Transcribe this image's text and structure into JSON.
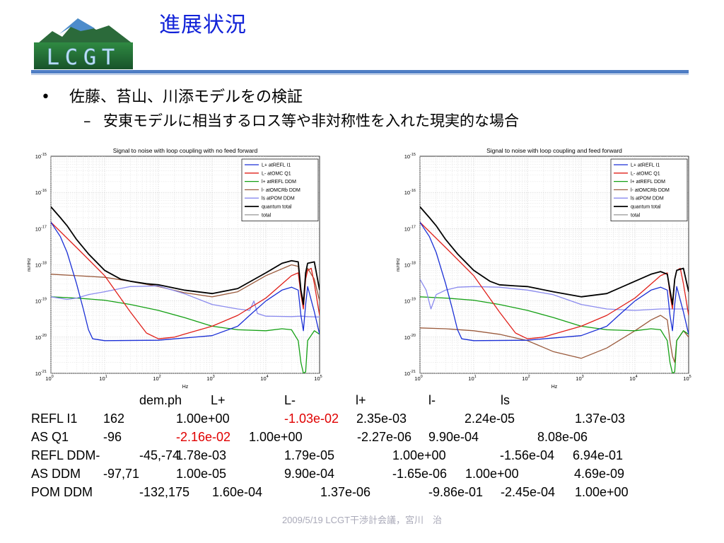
{
  "header": {
    "title": "進展状況",
    "logo_text": "LCGT"
  },
  "bullets": {
    "main": "佐藤、苔山、川添モデルをの検証",
    "sub": "安東モデルに相当するロス等や非対称性を入れた現実的な場合"
  },
  "colors": {
    "title": "#1122d8",
    "accent_rule": "#4f7ec4",
    "highlight": "#e00000",
    "series": {
      "L+ atREFL I1": "#1a2fd6",
      "L- atOMC Q1": "#e0201a",
      "l+ atREFL DDM": "#14a014",
      "l- atOMCRb DDM": "#9a5a3c",
      "ls atPOM DDM": "#8a8aee",
      "quantum total": "#000000",
      "total": "#a0a0a0"
    }
  },
  "icons": {
    "bullet": "bullet-dot-icon",
    "sub_bullet": "en-dash-icon",
    "logo": "mountain-logo-icon"
  },
  "chart_data": [
    {
      "type": "line",
      "title": "Signal to noise with loop coupling with no feed forward",
      "xlabel": "Hz",
      "ylabel": "m/rtHz",
      "xscale": "log",
      "yscale": "log",
      "xlim": [
        1,
        100000
      ],
      "ylim": [
        1e-21,
        1e-15
      ],
      "grid": true,
      "legend_position": "top-right",
      "series": [
        {
          "name": "L+ atREFL I1",
          "color": "#1a2fd6",
          "x": [
            1,
            1.5,
            2,
            3,
            4,
            5,
            6,
            10,
            100,
            1000,
            3000,
            5000,
            10000,
            20000,
            30000,
            40000,
            45000,
            50000,
            55000,
            60000,
            80000,
            100000
          ],
          "y": [
            1.5e-17,
            6e-18,
            2.2e-18,
            3e-19,
            6e-20,
            1.6e-20,
            9e-21,
            8e-21,
            8.2e-21,
            1.1e-20,
            2e-20,
            4e-20,
            1e-19,
            2e-19,
            2.4e-19,
            2e-19,
            4e-20,
            1.5e-20,
            8e-20,
            2.5e-19,
            5e-20,
            1.2e-20
          ]
        },
        {
          "name": "L- atOMC Q1",
          "color": "#e0201a",
          "x": [
            1,
            3,
            10,
            30,
            60,
            100,
            200,
            300,
            1000,
            3000,
            10000,
            30000,
            40000,
            45000,
            50000,
            55000,
            60000,
            70000,
            80000,
            100000
          ],
          "y": [
            1.5e-17,
            3e-18,
            5e-19,
            5e-20,
            1.3e-20,
            9e-21,
            1e-20,
            1.2e-20,
            2e-20,
            4e-20,
            1.2e-19,
            5e-19,
            6e-19,
            1.5e-19,
            6e-20,
            4e-19,
            7e-19,
            8e-19,
            3e-19,
            4e-20
          ]
        },
        {
          "name": "l+ atREFL DDM",
          "color": "#14a014",
          "x": [
            1,
            3,
            10,
            30,
            100,
            300,
            1000,
            3000,
            10000,
            20000,
            30000,
            40000,
            45000,
            50000,
            55000,
            60000,
            80000,
            100000
          ],
          "y": [
            1.3e-19,
            1.2e-19,
            1.05e-19,
            8e-20,
            5.5e-20,
            3.5e-20,
            2e-20,
            1.6e-20,
            1.5e-20,
            1.7e-20,
            1.6e-20,
            8e-21,
            2e-21,
            1e-21,
            1.1e-21,
            8e-21,
            1.5e-20,
            1.2e-20
          ]
        },
        {
          "name": "l- atOMCRb DDM",
          "color": "#9a5a3c",
          "x": [
            1,
            3,
            10,
            30,
            100,
            300,
            1000,
            3000,
            10000,
            30000,
            40000,
            45000,
            50000,
            55000,
            60000,
            80000,
            100000
          ],
          "y": [
            5.5e-19,
            5e-19,
            4.5e-19,
            3.5e-19,
            2.5e-19,
            1.7e-19,
            1.3e-19,
            1.8e-19,
            5e-19,
            1e-18,
            9e-19,
            2e-19,
            1e-19,
            5e-19,
            8e-19,
            4e-19,
            1e-19
          ]
        },
        {
          "name": "ls atPOM DDM",
          "color": "#8a8aee",
          "x": [
            1,
            2,
            3,
            5,
            10,
            30,
            100,
            300,
            1000,
            3000,
            5000,
            6000,
            7000,
            10000,
            30000,
            45000,
            60000,
            100000
          ],
          "y": [
            1.3e-19,
            1.1e-19,
            1.2e-19,
            1.5e-19,
            1.8e-19,
            2.5e-19,
            2.6e-19,
            1.6e-19,
            8e-20,
            6e-20,
            5.5e-20,
            1e-19,
            4.5e-20,
            3.8e-20,
            3.7e-20,
            3.8e-20,
            3.7e-20,
            3.6e-20
          ]
        },
        {
          "name": "quantum total",
          "color": "#000000",
          "x": [
            1,
            1.5,
            2,
            3,
            5,
            10,
            20,
            30,
            60,
            100,
            300,
            1000,
            3000,
            10000,
            20000,
            30000,
            40000,
            45000,
            50000,
            55000,
            60000,
            80000,
            100000
          ],
          "y": [
            4e-17,
            2e-17,
            1.2e-17,
            5e-18,
            2e-18,
            7e-19,
            4e-19,
            3.5e-19,
            3e-19,
            2.8e-19,
            2e-19,
            1.6e-19,
            2.2e-19,
            6e-19,
            1.1e-18,
            1.3e-18,
            1.2e-18,
            2e-19,
            8e-20,
            6e-19,
            1.1e-18,
            1.2e-18,
            2e-19
          ]
        },
        {
          "name": "total",
          "color": "#a0a0a0",
          "x": [],
          "y": []
        }
      ]
    },
    {
      "type": "line",
      "title": "Signal to noise with loop coupling and feed forward",
      "xlabel": "Hz",
      "ylabel": "m/rtHz",
      "xscale": "log",
      "yscale": "log",
      "xlim": [
        1,
        100000
      ],
      "ylim": [
        1e-21,
        1e-15
      ],
      "grid": true,
      "legend_position": "top-right",
      "series": [
        {
          "name": "L+ atREFL I1",
          "color": "#1a2fd6",
          "x": [
            1,
            1.5,
            2,
            3,
            4,
            5,
            6,
            10,
            100,
            1000,
            3000,
            5000,
            10000,
            20000,
            30000,
            40000,
            45000,
            50000,
            55000,
            60000,
            80000,
            100000
          ],
          "y": [
            1.5e-17,
            6e-18,
            2.2e-18,
            3e-19,
            6e-20,
            1.6e-20,
            9e-21,
            8e-21,
            8.2e-21,
            1.1e-20,
            2e-20,
            4e-20,
            1e-19,
            2e-19,
            2.4e-19,
            2e-19,
            4e-20,
            1.5e-20,
            8e-20,
            2.5e-19,
            5e-20,
            1.2e-20
          ]
        },
        {
          "name": "L- atOMC Q1",
          "color": "#e0201a",
          "x": [
            1,
            3,
            10,
            30,
            60,
            100,
            200,
            300,
            1000,
            3000,
            10000,
            30000,
            40000,
            45000,
            50000,
            55000,
            60000,
            70000,
            80000,
            100000
          ],
          "y": [
            1.5e-17,
            3e-18,
            5e-19,
            5e-20,
            1.3e-20,
            9e-21,
            1e-20,
            1.2e-20,
            2e-20,
            4e-20,
            1.2e-19,
            5e-19,
            6e-19,
            1.5e-19,
            6e-20,
            4e-19,
            7e-19,
            8e-19,
            3e-19,
            4e-20
          ]
        },
        {
          "name": "l+ atREFL DDM",
          "color": "#14a014",
          "x": [
            1,
            3,
            10,
            30,
            100,
            300,
            1000,
            3000,
            10000,
            20000,
            30000,
            40000,
            45000,
            50000,
            55000,
            60000,
            80000,
            100000
          ],
          "y": [
            1.3e-19,
            1.2e-19,
            1.05e-19,
            8e-20,
            5.5e-20,
            3.5e-20,
            2e-20,
            1.6e-20,
            1.5e-20,
            1.7e-20,
            1.6e-20,
            8e-21,
            2e-21,
            1e-21,
            1.1e-21,
            8e-21,
            1.5e-20,
            1.2e-20
          ]
        },
        {
          "name": "l- atOMCRb DDM",
          "color": "#9a5a3c",
          "x": [
            1,
            3,
            10,
            30,
            100,
            300,
            1000,
            3000,
            10000,
            20000,
            30000,
            40000,
            45000,
            50000,
            55000,
            60000,
            80000,
            100000
          ],
          "y": [
            1.8e-20,
            1.7e-20,
            1.5e-20,
            1.2e-20,
            8e-21,
            4e-21,
            2.6e-21,
            5e-21,
            1.5e-20,
            3e-20,
            4e-20,
            3e-20,
            8e-21,
            3e-21,
            2e-21,
            8e-21,
            1.5e-20,
            1e-20
          ]
        },
        {
          "name": "ls atPOM DDM",
          "color": "#8a8aee",
          "x": [
            1,
            1.3,
            1.6,
            2,
            3,
            5,
            10,
            30,
            100,
            300,
            1000,
            3000,
            10000,
            30000,
            45000,
            60000,
            100000
          ],
          "y": [
            4e-19,
            2e-19,
            6e-20,
            1.5e-19,
            2e-19,
            2.4e-19,
            2.5e-19,
            2.4e-19,
            2e-19,
            1.5e-19,
            8e-20,
            6e-20,
            5.5e-20,
            6e-20,
            6e-20,
            6e-20,
            6e-20
          ]
        },
        {
          "name": "quantum total",
          "color": "#000000",
          "x": [
            1,
            1.5,
            2,
            3,
            5,
            10,
            20,
            30,
            60,
            100,
            300,
            1000,
            3000,
            10000,
            20000,
            30000,
            40000,
            45000,
            50000,
            55000,
            60000,
            80000,
            100000
          ],
          "y": [
            4e-17,
            2e-17,
            1.2e-17,
            5e-18,
            2e-18,
            7e-19,
            3.5e-19,
            2.8e-19,
            2.6e-19,
            2.5e-19,
            1.8e-19,
            1.3e-19,
            1.6e-19,
            3.5e-19,
            5.5e-19,
            6.5e-19,
            5.5e-19,
            2e-19,
            8e-20,
            4e-19,
            7e-19,
            8e-19,
            1.8e-19
          ]
        },
        {
          "name": "total",
          "color": "#a0a0a0",
          "x": [],
          "y": []
        }
      ]
    },
    {
      "type": "table",
      "columns": [
        "",
        "dem.ph",
        "L+",
        "L-",
        "l+",
        "l-",
        "ls"
      ],
      "rows": [
        [
          "REFL I1",
          "162",
          "1.00e+00",
          "-1.03e-02",
          "2.35e-03",
          "2.24e-05",
          "1.37e-03"
        ],
        [
          "AS Q1",
          "-96",
          "-2.16e-02",
          "1.00e+00",
          "-2.27e-06",
          "9.90e-04",
          "8.08e-06"
        ],
        [
          "REFL DDM",
          "-45,-74",
          "1.78e-03",
          "1.79e-05",
          "1.00e+00",
          "-1.56e-04",
          "6.94e-01"
        ],
        [
          "AS DDM",
          "-97,71",
          "1.00e-05",
          "9.90e-04",
          "-1.65e-06",
          "1.00e+00",
          "4.69e-09"
        ],
        [
          "POM DDM",
          "-132,175",
          "1.60e-04",
          "1.37e-06",
          "-9.86e-01",
          "-2.45e-04",
          "1.00e+00"
        ]
      ],
      "highlight_color": "#e00000",
      "highlighted_cells": [
        {
          "row": 0,
          "col": 3
        },
        {
          "row": 1,
          "col": 2
        }
      ]
    }
  ],
  "chart_axes": {
    "y_ticks": [
      {
        "exp": -15,
        "label": "10",
        "sup": "-15"
      },
      {
        "exp": -16,
        "label": "10",
        "sup": "-16"
      },
      {
        "exp": -17,
        "label": "10",
        "sup": "-17"
      },
      {
        "exp": -18,
        "label": "10",
        "sup": "-18"
      },
      {
        "exp": -19,
        "label": "10",
        "sup": "-19"
      },
      {
        "exp": -20,
        "label": "10",
        "sup": "-20"
      },
      {
        "exp": -21,
        "label": "10",
        "sup": "-21"
      }
    ],
    "x_ticks": [
      {
        "exp": 0,
        "label": "10",
        "sup": "0"
      },
      {
        "exp": 1,
        "label": "10",
        "sup": "1"
      },
      {
        "exp": 2,
        "label": "10",
        "sup": "2"
      },
      {
        "exp": 3,
        "label": "10",
        "sup": "3"
      },
      {
        "exp": 4,
        "label": "10",
        "sup": "4"
      },
      {
        "exp": 5,
        "label": "10",
        "sup": "5"
      }
    ]
  },
  "footer": {
    "text": "2009/5/19 LCGT干渉計会議，宮川　治"
  }
}
